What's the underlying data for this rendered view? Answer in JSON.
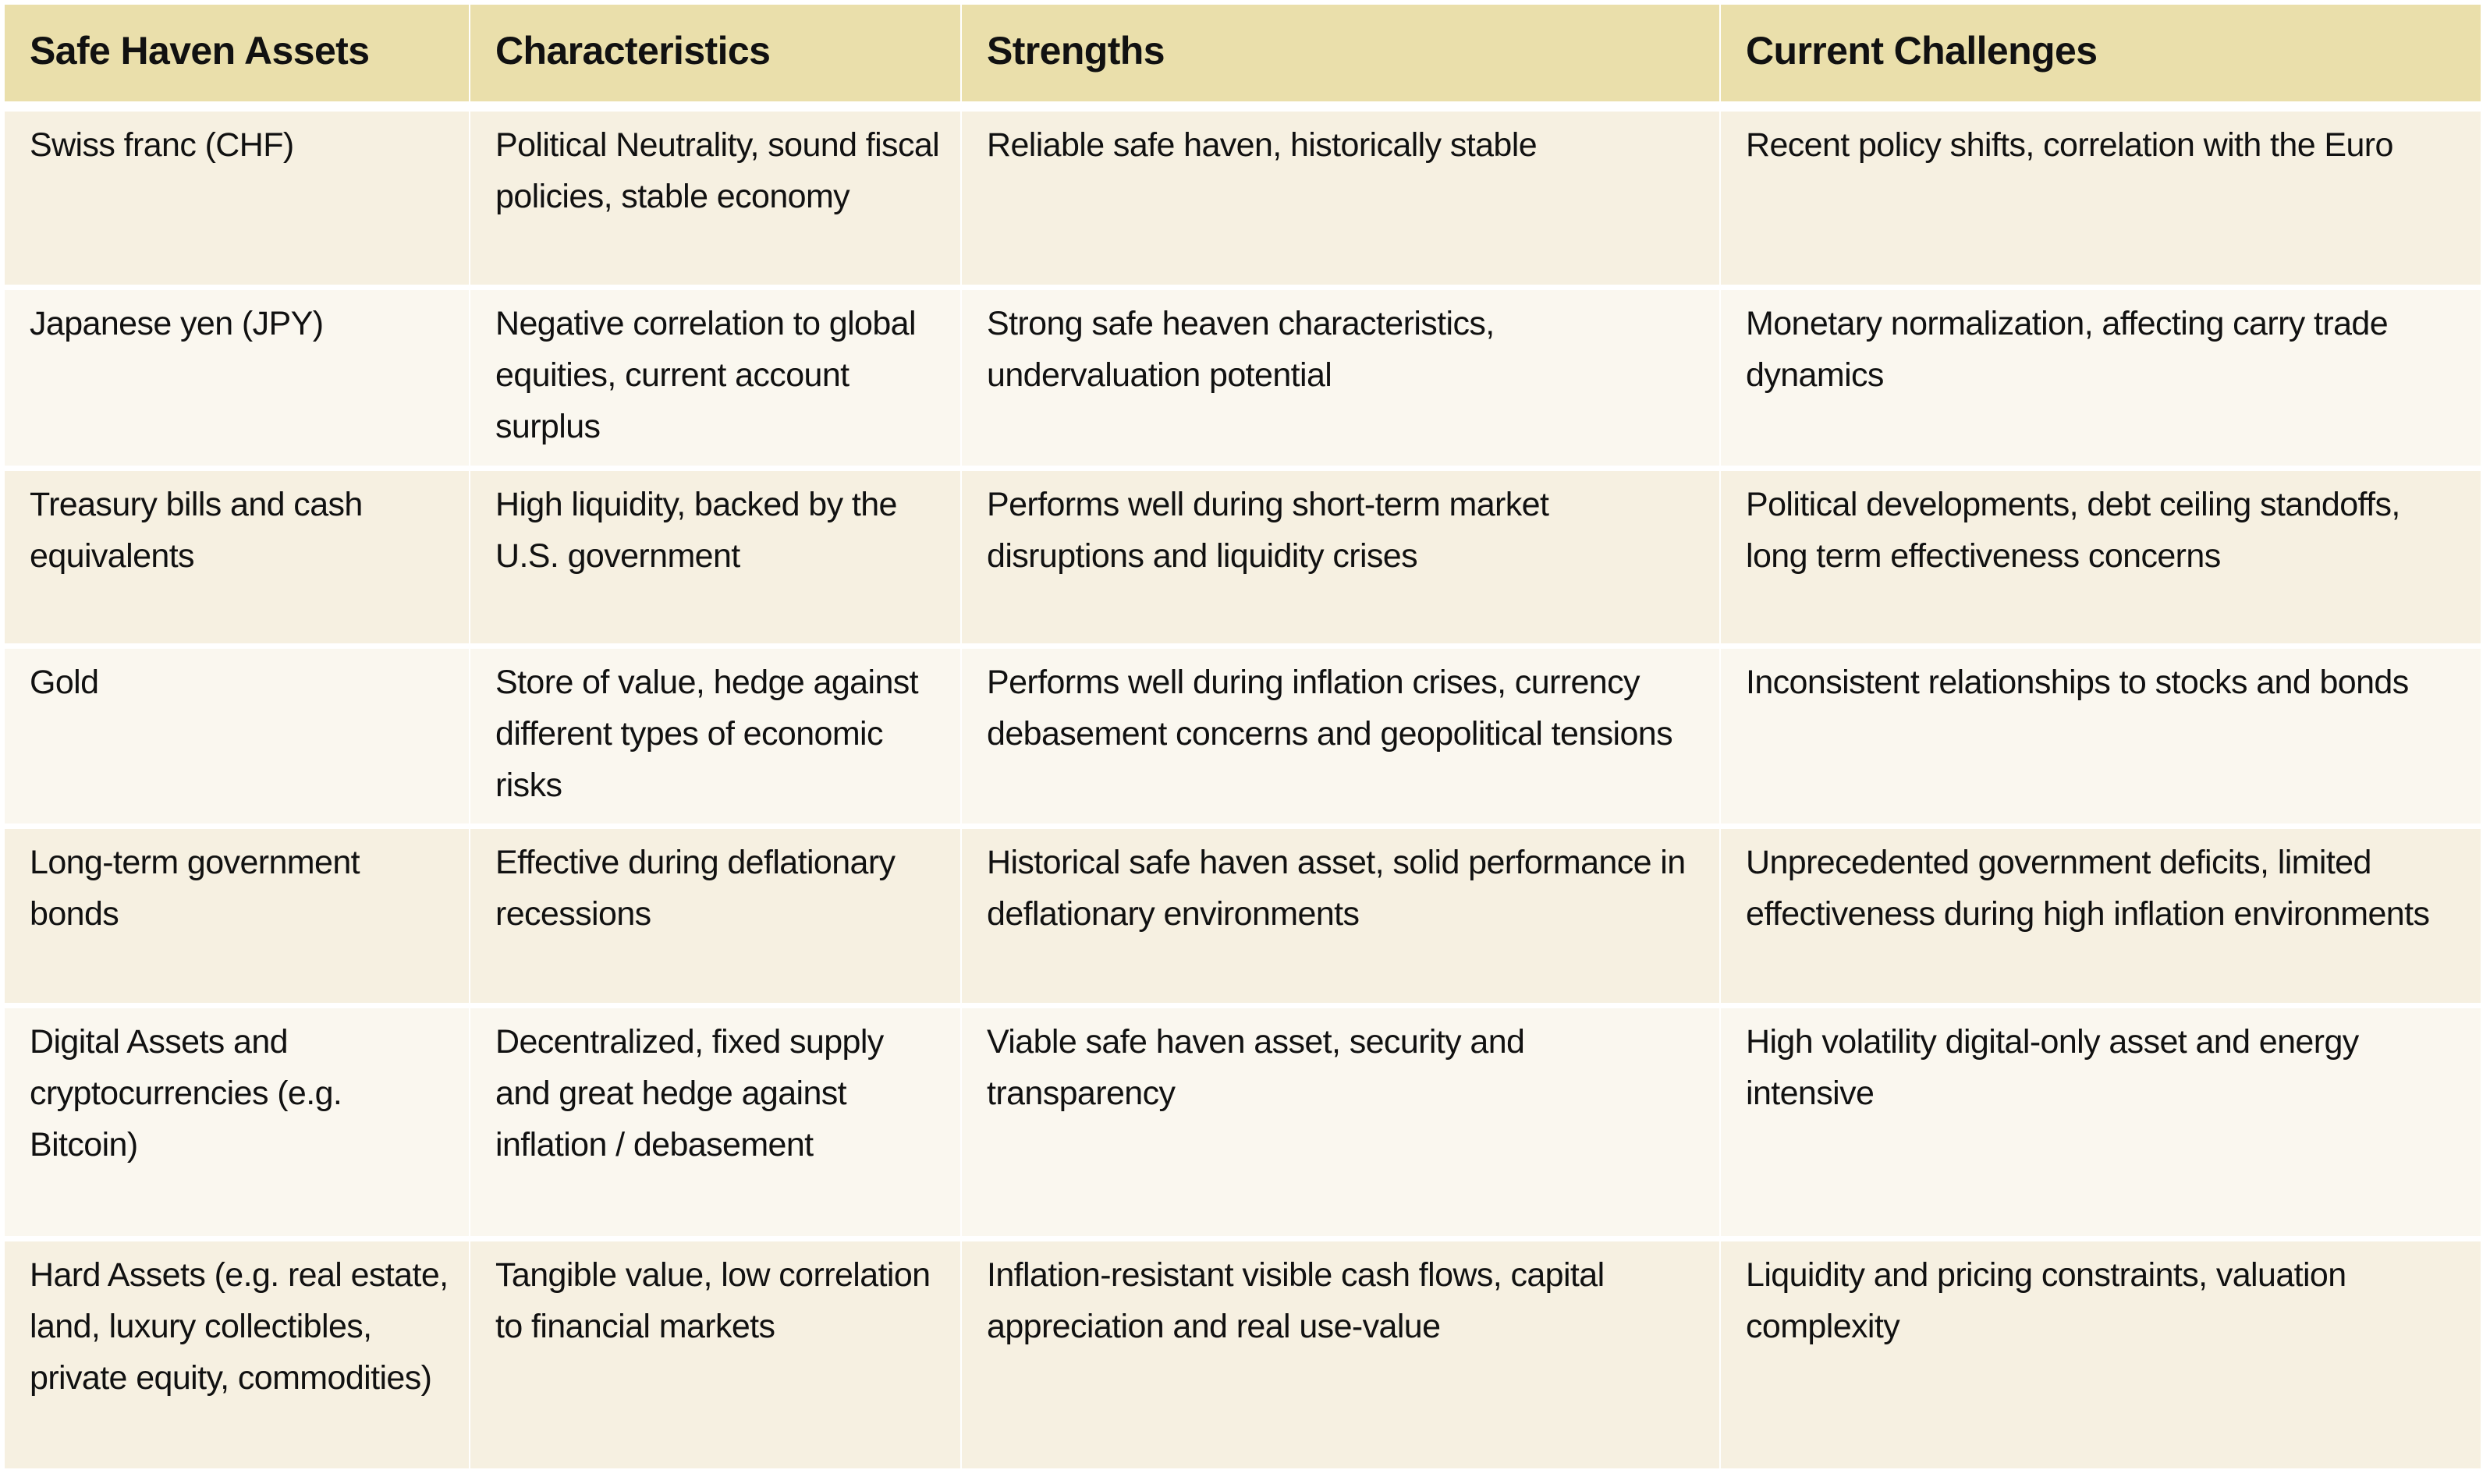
{
  "table": {
    "headers": [
      "Safe Haven Assets",
      "Characteristics",
      "Strengths",
      "Current Challenges"
    ],
    "rows": [
      {
        "asset": "Swiss franc (CHF)",
        "characteristics": "Political Neutrality, sound fiscal policies, stable economy",
        "strengths": "Reliable safe haven, historically stable",
        "challenges": "Recent policy shifts, correlation with the Euro"
      },
      {
        "asset": "Japanese yen (JPY)",
        "characteristics": "Negative correlation to global equities, current account surplus",
        "strengths": "Strong safe heaven characteristics, undervaluation potential",
        "challenges": "Monetary normalization, affecting carry trade dynamics"
      },
      {
        "asset": "Treasury bills and cash equivalents",
        "characteristics": "High liquidity, backed by the U.S. government",
        "strengths": "Performs well during short-term market disruptions and liquidity crises",
        "challenges": "Political developments, debt ceiling standoffs, long term effectiveness concerns"
      },
      {
        "asset": "Gold",
        "characteristics": "Store of value, hedge against different types of economic risks",
        "strengths": "Performs well during inflation crises, currency debasement concerns and geopolitical tensions",
        "challenges": "Inconsistent relationships to stocks and bonds"
      },
      {
        "asset": "Long-term government bonds",
        "characteristics": "Effective during deflationary recessions",
        "strengths": "Historical safe haven asset, solid performance in deflationary environments",
        "challenges": "Unprecedented government deficits, limited effectiveness during high inflation environments"
      },
      {
        "asset": "Digital Assets and cryptocurrencies (e.g. Bitcoin)",
        "characteristics": "Decentralized, fixed supply and great hedge against inflation / debasement",
        "strengths": "Viable safe haven asset, security and transparency",
        "challenges": "High volatility digital-only asset and energy intensive"
      },
      {
        "asset": "Hard Assets (e.g. real estate, land, luxury collectibles, private equity, commodities)",
        "characteristics": "Tangible value, low correlation to financial markets",
        "strengths": "Inflation-resistant visible cash flows, capital appreciation and real use-value",
        "challenges": "Liquidity and pricing constraints, valuation complexity"
      }
    ]
  },
  "colors": {
    "header_bg": "#EADFAB",
    "row_odd_bg": "#F6F0E1",
    "row_even_bg": "#FAF7EF",
    "text": "#111111"
  }
}
